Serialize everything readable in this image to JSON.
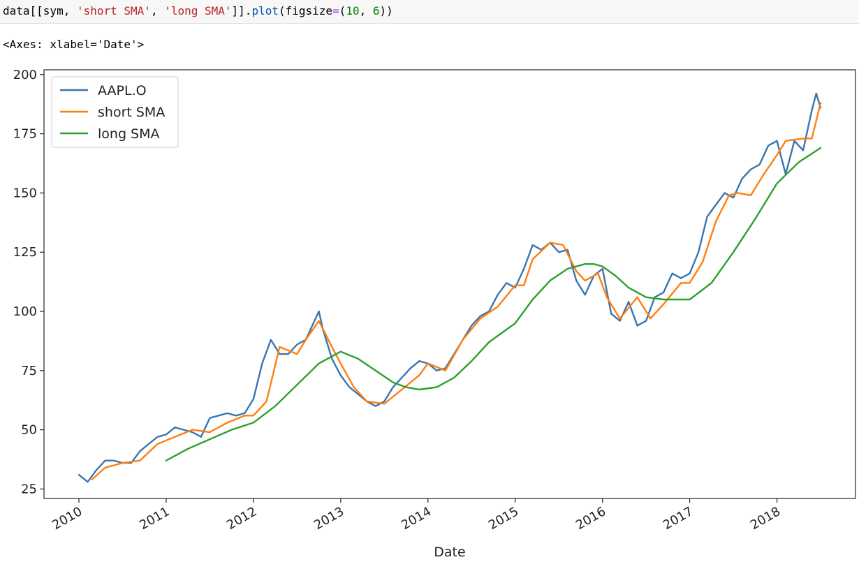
{
  "code": {
    "prefix": "data[[sym, ",
    "str1": "'short SMA'",
    "sep": ", ",
    "str2": "'long SMA'",
    "close": "]].",
    "fn": "plot",
    "open": "(figsize",
    "eq": "=",
    "paren": "(",
    "num1": "10",
    "comma": ", ",
    "num2": "6",
    "end": "))"
  },
  "output_text": "<Axes: xlabel='Date'>",
  "chart_data": {
    "type": "line",
    "xlabel": "Date",
    "ylabel": "",
    "xlim": [
      2009.6,
      2018.9
    ],
    "ylim": [
      21,
      202
    ],
    "x_ticks": [
      "2010",
      "2011",
      "2012",
      "2013",
      "2014",
      "2015",
      "2016",
      "2017",
      "2018"
    ],
    "y_ticks": [
      25,
      50,
      75,
      100,
      125,
      150,
      175,
      200
    ],
    "legend": "top-left",
    "series": [
      {
        "name": "AAPL.O",
        "color": "#3b75af",
        "x": [
          2010.0,
          2010.1,
          2010.2,
          2010.3,
          2010.4,
          2010.5,
          2010.6,
          2010.7,
          2010.8,
          2010.9,
          2011.0,
          2011.1,
          2011.2,
          2011.3,
          2011.4,
          2011.5,
          2011.6,
          2011.7,
          2011.8,
          2011.9,
          2012.0,
          2012.1,
          2012.2,
          2012.3,
          2012.4,
          2012.5,
          2012.6,
          2012.7,
          2012.75,
          2012.8,
          2012.9,
          2013.0,
          2013.1,
          2013.2,
          2013.3,
          2013.4,
          2013.5,
          2013.6,
          2013.7,
          2013.8,
          2013.9,
          2014.0,
          2014.1,
          2014.2,
          2014.3,
          2014.4,
          2014.5,
          2014.6,
          2014.7,
          2014.8,
          2014.9,
          2015.0,
          2015.1,
          2015.2,
          2015.3,
          2015.4,
          2015.5,
          2015.6,
          2015.7,
          2015.8,
          2015.9,
          2016.0,
          2016.1,
          2016.2,
          2016.3,
          2016.4,
          2016.5,
          2016.6,
          2016.7,
          2016.8,
          2016.9,
          2017.0,
          2017.1,
          2017.2,
          2017.3,
          2017.4,
          2017.5,
          2017.6,
          2017.7,
          2017.8,
          2017.9,
          2018.0,
          2018.1,
          2018.2,
          2018.3,
          2018.4,
          2018.45,
          2018.5
        ],
        "values": [
          31,
          28,
          33,
          37,
          37,
          36,
          36,
          41,
          44,
          47,
          48,
          51,
          50,
          49,
          47,
          55,
          56,
          57,
          56,
          57,
          63,
          78,
          88,
          82,
          82,
          86,
          88,
          96,
          100,
          92,
          80,
          73,
          68,
          65,
          62,
          60,
          62,
          68,
          72,
          76,
          79,
          78,
          75,
          76,
          82,
          88,
          94,
          98,
          100,
          107,
          112,
          110,
          118,
          128,
          126,
          129,
          125,
          126,
          113,
          107,
          115,
          118,
          99,
          96,
          104,
          94,
          96,
          106,
          108,
          116,
          114,
          116,
          125,
          140,
          145,
          150,
          148,
          156,
          160,
          162,
          170,
          172,
          158,
          172,
          168,
          185,
          192,
          186
        ]
      },
      {
        "name": "short SMA",
        "color": "#ff7f0e",
        "x": [
          2010.15,
          2010.3,
          2010.5,
          2010.7,
          2010.9,
          2011.1,
          2011.3,
          2011.5,
          2011.7,
          2011.9,
          2012.0,
          2012.15,
          2012.3,
          2012.5,
          2012.6,
          2012.75,
          2012.9,
          2013.0,
          2013.15,
          2013.3,
          2013.5,
          2013.7,
          2013.9,
          2014.0,
          2014.2,
          2014.4,
          2014.6,
          2014.8,
          2015.0,
          2015.1,
          2015.2,
          2015.4,
          2015.55,
          2015.7,
          2015.8,
          2015.95,
          2016.05,
          2016.2,
          2016.4,
          2016.55,
          2016.7,
          2016.9,
          2017.0,
          2017.15,
          2017.3,
          2017.45,
          2017.55,
          2017.7,
          2017.85,
          2018.0,
          2018.1,
          2018.3,
          2018.4,
          2018.5
        ],
        "values": [
          29,
          34,
          36,
          37,
          44,
          47,
          50,
          49,
          53,
          56,
          56,
          62,
          85,
          82,
          88,
          96,
          85,
          78,
          68,
          62,
          61,
          67,
          73,
          78,
          75,
          88,
          97,
          102,
          111,
          111,
          122,
          129,
          128,
          117,
          113,
          116,
          106,
          97,
          106,
          97,
          103,
          112,
          112,
          121,
          138,
          149,
          150,
          149,
          158,
          166,
          172,
          173,
          173,
          188
        ]
      },
      {
        "name": "long SMA",
        "color": "#2ca02c",
        "x": [
          2011.0,
          2011.25,
          2011.5,
          2011.75,
          2012.0,
          2012.25,
          2012.5,
          2012.75,
          2013.0,
          2013.2,
          2013.4,
          2013.6,
          2013.75,
          2013.9,
          2014.1,
          2014.3,
          2014.5,
          2014.7,
          2015.0,
          2015.2,
          2015.4,
          2015.6,
          2015.8,
          2015.9,
          2016.0,
          2016.15,
          2016.3,
          2016.5,
          2016.7,
          2016.9,
          2017.0,
          2017.25,
          2017.5,
          2017.75,
          2018.0,
          2018.25,
          2018.5
        ],
        "values": [
          37,
          42,
          46,
          50,
          53,
          60,
          69,
          78,
          83,
          80,
          75,
          70,
          68,
          67,
          68,
          72,
          79,
          87,
          95,
          105,
          113,
          118,
          120,
          120,
          119,
          115,
          110,
          106,
          105,
          105,
          105,
          112,
          125,
          139,
          154,
          163,
          169
        ]
      }
    ]
  }
}
